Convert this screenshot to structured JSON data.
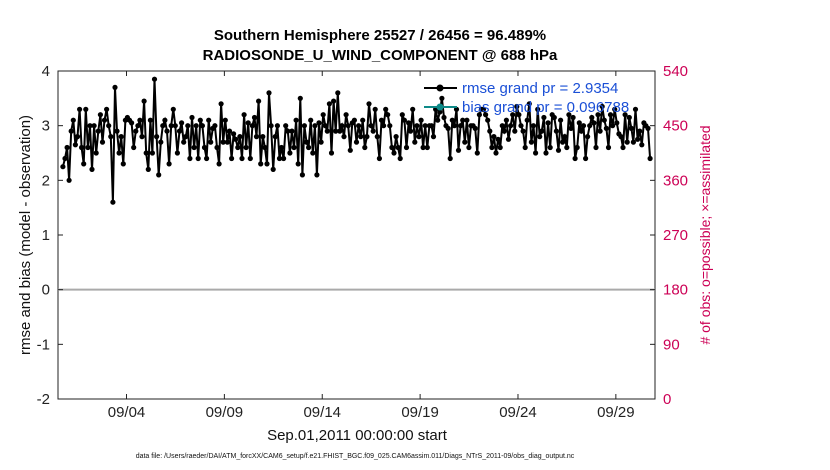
{
  "chart_data": {
    "type": "line",
    "title_line1": "Southern Hemisphere 25527 / 26456 = 96.489%",
    "title_line2": "RADIOSONDE_U_WIND_COMPONENT @ 688 hPa",
    "ylabel": "rmse and bias (model - observation)",
    "ylabel_right": "# of obs: o=possible; ×=assimilated",
    "xlabel": "Sep.01,2011 00:00:00 start",
    "footer": "data file: /Users/raeder/DAI/ATM_forcXX/CAM6_setup/f.e21.FHIST_BGC.f09_025.CAM6assim.011/Diags_NTrS_2011-09/obs_diag_output.nc",
    "ylim": [
      -2,
      4
    ],
    "ylim_right": [
      0,
      540
    ],
    "xlim": [
      0,
      30.5
    ],
    "yticks": [
      "-2",
      "-1",
      "0",
      "1",
      "2",
      "3",
      "4"
    ],
    "yticks_right": [
      "0",
      "90",
      "180",
      "270",
      "360",
      "450",
      "540"
    ],
    "xticks": [
      {
        "label": "09/04",
        "day": 3.5
      },
      {
        "label": "09/09",
        "day": 8.5
      },
      {
        "label": "09/14",
        "day": 13.5
      },
      {
        "label": "09/19",
        "day": 18.5
      },
      {
        "label": "09/24",
        "day": 23.5
      },
      {
        "label": "09/29",
        "day": 28.5
      }
    ],
    "legend": {
      "placement": "top-right",
      "rmse_label": "rmse grand pr = 2.9354",
      "bias_label": "bias grand pr = 0.096788"
    },
    "x_step_days": 0.25,
    "colors": {
      "rmse": "#000000",
      "bias": "#0e8a88",
      "obs": "#d81b60",
      "zero_line": "#aaaaaa"
    },
    "series": [
      {
        "name": "rmse",
        "values": [
          2.25,
          2.4,
          2.6,
          2.0,
          2.9,
          3.1,
          2.65,
          2.8,
          3.3,
          2.6,
          2.3,
          3.3,
          2.6,
          3.0,
          2.2,
          3.0,
          2.5,
          2.9,
          3.2,
          2.7,
          3.1,
          3.3,
          3.0,
          2.8,
          1.6,
          3.7,
          2.9,
          2.5,
          2.8,
          2.3,
          3.1,
          3.15,
          3.1,
          3.05,
          2.6,
          2.9,
          3.0,
          3.1,
          2.8,
          3.45,
          2.5,
          2.2,
          3.1,
          2.5,
          3.85,
          2.8,
          2.1,
          2.7,
          3.0,
          3.1,
          2.9,
          2.3,
          3.0,
          3.3,
          3.0,
          2.5,
          2.9,
          3.05,
          2.7,
          2.8,
          3.0,
          2.4,
          3.15,
          2.6,
          3.0,
          2.4,
          3.1,
          3.0,
          2.6,
          2.4,
          3.1,
          2.7,
          2.95,
          3.0,
          2.6,
          2.3,
          3.4,
          2.7,
          3.1,
          2.7,
          2.9,
          2.4,
          2.85,
          2.75,
          2.6,
          2.8,
          2.4,
          3.2,
          2.6,
          3.05,
          2.4,
          3.0,
          3.15,
          2.8,
          3.45,
          2.3,
          2.8,
          2.6,
          2.3,
          3.6,
          3.0,
          2.2,
          2.8,
          3.0,
          2.4,
          2.6,
          2.4,
          3.0,
          2.9,
          2.5,
          2.9,
          2.6,
          3.1,
          2.3,
          3.5,
          2.1,
          3.0,
          2.7,
          2.6,
          3.1,
          2.5,
          3.0,
          2.1,
          3.05,
          2.7,
          3.2,
          3.0,
          2.9,
          3.4,
          2.5,
          3.45,
          2.9,
          3.6,
          2.9,
          3.0,
          2.8,
          3.2,
          3.0,
          2.55,
          3.05,
          3.1,
          2.7,
          3.0,
          2.8,
          3.1,
          2.6,
          2.8,
          3.4,
          3.0,
          2.9,
          3.3,
          2.8,
          2.4,
          3.1,
          3.0,
          3.3,
          3.2,
          3.0,
          2.6,
          2.5,
          2.8,
          2.6,
          2.4,
          3.2,
          3.1,
          2.6,
          3.05,
          2.9,
          3.3,
          2.7,
          3.0,
          2.8,
          3.1,
          2.6,
          3.0,
          2.6,
          3.0,
          3.0,
          2.8,
          3.3,
          3.1,
          3.25,
          3.5,
          3.15,
          3.0,
          2.95,
          2.4,
          3.1,
          3.0,
          3.3,
          2.55,
          3.0,
          3.1,
          2.7,
          3.1,
          2.6,
          3.0,
          3.0,
          2.95,
          2.5,
          3.2,
          3.3,
          3.3,
          3.2,
          3.1,
          2.9,
          2.6,
          2.8,
          2.5,
          2.75,
          2.6,
          3.0,
          2.9,
          3.1,
          2.75,
          3.0,
          3.2,
          2.9,
          3.35,
          3.2,
          3.0,
          2.9,
          2.6,
          3.1,
          3.4,
          2.7,
          3.0,
          2.5,
          3.3,
          2.8,
          2.9,
          3.15,
          2.5,
          3.05,
          2.6,
          3.2,
          3.15,
          2.9,
          2.55,
          3.1,
          2.7,
          2.8,
          2.6,
          3.2,
          2.95,
          3.15,
          2.4,
          2.6,
          3.05,
          2.9,
          3.0,
          2.4,
          2.8,
          3.0,
          3.15,
          3.05,
          2.6,
          3.2,
          2.9,
          3.35,
          3.1,
          2.95,
          2.6,
          3.2,
          3.0,
          3.3,
          3.05,
          2.85,
          2.8,
          2.6,
          3.2,
          2.7,
          3.15,
          2.95,
          2.7,
          3.3,
          2.75,
          2.9,
          2.65,
          3.05,
          3.0,
          2.95,
          2.4
        ],
        "values_note": "rmse estimated every 0.25 day"
      }
    ]
  }
}
